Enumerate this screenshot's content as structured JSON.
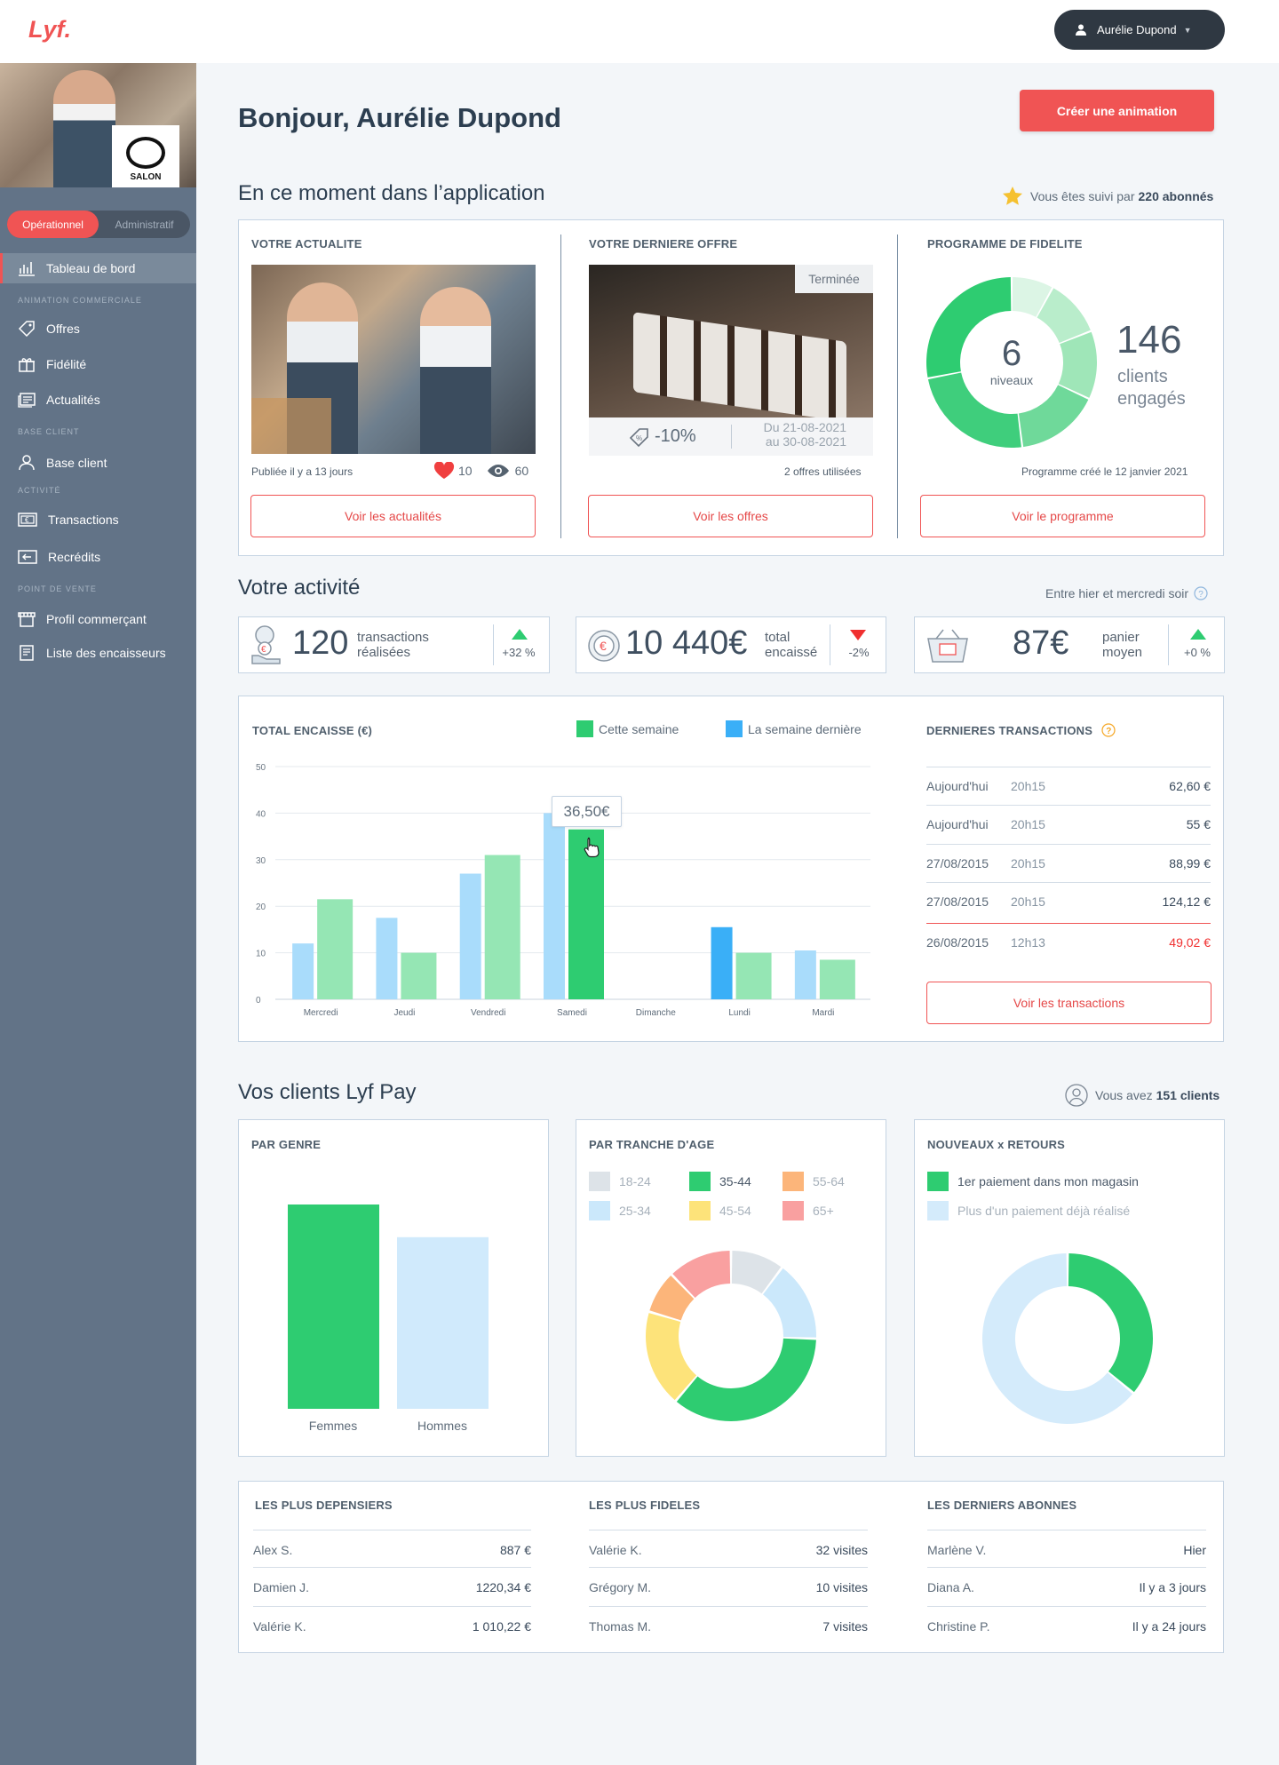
{
  "app": {
    "logo": "Lyf.",
    "user": "Aurélie Dupond"
  },
  "sidebar": {
    "shop_logo": "SALON",
    "seg": [
      "Opérationnel",
      "Administratif"
    ],
    "items": [
      {
        "label": "Tableau de bord",
        "icon": "bar-chart-icon"
      },
      {
        "section": "ANIMATION COMMERCIALE"
      },
      {
        "label": "Offres",
        "icon": "tag-icon"
      },
      {
        "label": "Fidélité",
        "icon": "gift-icon"
      },
      {
        "label": "Actualités",
        "icon": "news-icon"
      },
      {
        "section": "BASE CLIENT"
      },
      {
        "label": "Base client",
        "icon": "user-icon"
      },
      {
        "section": "ACTIVITÉ"
      },
      {
        "label": "Transactions",
        "icon": "euro-card-icon"
      },
      {
        "label": "Recrédits",
        "icon": "recredit-icon"
      },
      {
        "section": "POINT DE VENTE"
      },
      {
        "label": "Profil commerçant",
        "icon": "store-icon"
      },
      {
        "label": "Liste des encaisseurs",
        "icon": "list-icon"
      }
    ]
  },
  "header": {
    "greeting": "Bonjour, Aurélie Dupond",
    "cta": "Créer une animation"
  },
  "moment": {
    "title": "En ce moment dans l’application",
    "followers_prefix": "Vous êtes suivi par",
    "followers": "220 abonnés",
    "news": {
      "title": "VOTRE ACTUALITE",
      "published": "Publiée il y a 13 jours",
      "likes": "10",
      "views": "60",
      "button": "Voir les actualités"
    },
    "offer": {
      "title": "VOTRE DERNIERE OFFRE",
      "status": "Terminée",
      "discount": "-10%",
      "from": "Du 21-08-2021",
      "to": "au 30-08-2021",
      "used": "2 offres utilisées",
      "button": "Voir les offres"
    },
    "loyalty": {
      "title": "PROGRAMME DE FIDELITE",
      "levels": "6",
      "levels_label": "niveaux",
      "clients": "146",
      "clients_label1": "clients",
      "clients_label2": "engagés",
      "created": "Programme créé le 12 janvier 2021",
      "button": "Voir le programme"
    }
  },
  "activity": {
    "title": "Votre activité",
    "period": "Entre hier et mercredi soir",
    "kpis": [
      {
        "value": "120",
        "label1": "transactions",
        "label2": "réalisées",
        "delta": "+32 %",
        "trend": "up",
        "icon": "hand-coin-icon"
      },
      {
        "value": "10 440€",
        "label1": "total",
        "label2": "encaissé",
        "delta": "-2%",
        "trend": "down",
        "icon": "coin-icon"
      },
      {
        "value": "87€",
        "label1": "panier",
        "label2": "moyen",
        "delta": "+0 %",
        "trend": "up",
        "icon": "basket-icon"
      }
    ],
    "chart_title": "TOTAL ENCAISSE (€)",
    "tooltip": "36,50€",
    "transactions_title": "DERNIERES TRANSACTIONS",
    "transactions": [
      {
        "date": "Aujourd'hui",
        "time": "20h15",
        "amount": "62,60 €"
      },
      {
        "date": "Aujourd'hui",
        "time": "20h15",
        "amount": "55 €"
      },
      {
        "date": "27/08/2015",
        "time": "20h15",
        "amount": "88,99 €"
      },
      {
        "date": "27/08/2015",
        "time": "20h15",
        "amount": "124,12 €"
      },
      {
        "date": "26/08/2015",
        "time": "12h13",
        "amount": "49,02 €",
        "negative": true
      }
    ],
    "transactions_button": "Voir les transactions"
  },
  "clients": {
    "title": "Vos clients Lyf Pay",
    "count_prefix": "Vous avez",
    "count": "151 clients",
    "gender": {
      "title": "PAR GENRE"
    },
    "age": {
      "title": "PAR TRANCHE D'AGE"
    },
    "returns": {
      "title": "NOUVEAUX x RETOURS"
    }
  },
  "tops": {
    "spenders": {
      "title": "LES PLUS DEPENSIERS",
      "rows": [
        [
          "Alex S.",
          "887 €"
        ],
        [
          "Damien J.",
          "1220,34 €"
        ],
        [
          "Valérie K.",
          "1 010,22 €"
        ]
      ]
    },
    "loyal": {
      "title": "LES PLUS FIDELES",
      "rows": [
        [
          "Valérie K.",
          "32 visites"
        ],
        [
          "Grégory M.",
          "10 visites"
        ],
        [
          "Thomas M.",
          "7 visites"
        ]
      ]
    },
    "subs": {
      "title": "LES DERNIERS ABONNES",
      "rows": [
        [
          "Marlène  V.",
          "Hier"
        ],
        [
          "Diana A.",
          "Il y a 3 jours"
        ],
        [
          "Christine P.",
          "Il y a 24 jours"
        ]
      ]
    }
  },
  "colors": {
    "accent": "#f05454",
    "green": "#2ecc71",
    "light_green": "#95e6b4",
    "blue": "#3aaff7",
    "light_blue": "#a9dcfb",
    "sidebar": "#627387"
  },
  "chart_data": [
    {
      "type": "bar",
      "title": "TOTAL ENCAISSE (€)",
      "categories": [
        "Mercredi",
        "Jeudi",
        "Vendredi",
        "Samedi",
        "Dimanche",
        "Lundi",
        "Mardi"
      ],
      "series": [
        {
          "name": "La semaine dernière",
          "values": [
            12,
            17.5,
            27,
            40,
            0,
            15.5,
            10.5
          ]
        },
        {
          "name": "Cette semaine",
          "values": [
            21.5,
            10,
            31,
            36.5,
            0,
            10,
            8.5
          ]
        }
      ],
      "ylim": [
        0,
        50
      ],
      "yticks": [
        0,
        10,
        20,
        30,
        40,
        50
      ],
      "grid": true,
      "legend": "top-right"
    },
    {
      "type": "bar",
      "title": "PAR GENRE",
      "categories": [
        "Femmes",
        "Hommes"
      ],
      "values": [
        100,
        84
      ]
    },
    {
      "type": "pie",
      "title": "PAR TRANCHE D'AGE",
      "labels": [
        "18-24",
        "25-34",
        "35-44",
        "45-54",
        "55-64",
        "65+"
      ],
      "values": [
        10,
        15,
        35,
        18,
        8,
        12
      ],
      "colors": [
        "#dde3e8",
        "#cbe8fb",
        "#2ecc71",
        "#fde37a",
        "#fcb57a",
        "#f9a0a0"
      ]
    },
    {
      "type": "pie",
      "title": "NOUVEAUX x RETOURS",
      "labels": [
        "1er paiement dans mon magasin",
        "Plus d'un paiement déjà réalisé"
      ],
      "values": [
        36,
        64
      ],
      "colors": [
        "#2ecc71",
        "#d4ebfb"
      ]
    }
  ]
}
